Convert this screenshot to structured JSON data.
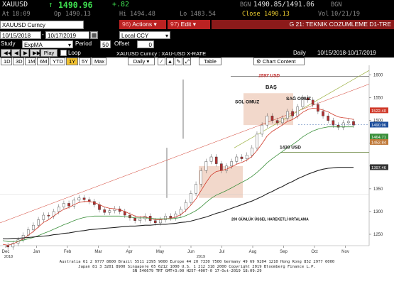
{
  "quote": {
    "ticker": "XAUUSD",
    "arrow": "↑",
    "last": "1490.96",
    "change": "+.82",
    "source1": "BGN",
    "bid_ask": "1490.85/1491.06",
    "source2": "BGN",
    "at_label": "At",
    "at_time": "18:09",
    "op_label": "Op",
    "op_value": "1490.13",
    "hi_label": "Hi",
    "hi_value": "1494.48",
    "lo_label": "Lo",
    "lo_value": "1483.54",
    "close_label": "Close",
    "close_value": "1490.13",
    "vol_label": "Vol",
    "vol_date": "10/21/19"
  },
  "toolbar": {
    "security": "XAUUSD  Curncy",
    "actions_num": "96)",
    "actions": "Actions",
    "edit_num": "97)",
    "edit": "Edit",
    "title": "G 21: TEKNIK COZUMLEME D1-TRE"
  },
  "daterow": {
    "from": "10/15/2018",
    "to": "10/17/2019",
    "ccy": "Local CCY"
  },
  "studyrow": {
    "study_label": "Study",
    "study_value": "ExpMA",
    "period_label": "Period",
    "period_value": "50",
    "offset_label": "Offset",
    "offset_value": "0"
  },
  "playrow": {
    "play": "Play",
    "loop": "Loop",
    "desc": "XAUUSD  Curncy : XAU-USD X-RATE",
    "freq": "Daily",
    "range": "10/15/2018-10/17/2019"
  },
  "tabs": {
    "periods": [
      "1D",
      "3D",
      "1M",
      "6M",
      "YTD",
      "1Y",
      "5Y",
      "Max"
    ],
    "selected": "1Y",
    "daily": "Daily",
    "table": "Table",
    "chart_content": "Chart Content"
  },
  "chart_data": {
    "type": "line",
    "x_labels": [
      "Dec",
      "Jan",
      "Feb",
      "Mar",
      "Apr",
      "May",
      "Jun",
      "Jul",
      "Aug",
      "Sep",
      "Oct",
      "Nov"
    ],
    "year_labels": [
      "2018",
      "2019"
    ],
    "y_ticks": [
      1250,
      1300,
      1350,
      1400,
      1450,
      1500,
      1550,
      1600
    ],
    "ylim": [
      1225,
      1615
    ],
    "right_tags": [
      "1522.40",
      "1490.96",
      "1464.71",
      "1452.84",
      "1397.46"
    ],
    "right_tag_colors": [
      "#d03a2a",
      "#1e4f9c",
      "#3a8f3a",
      "#c07a3a",
      "#333333"
    ],
    "annotations": {
      "target": "1597 USD",
      "head": "BAŞ",
      "left_shoulder": "SOL OMUZ",
      "right_shoulder": "SAĞ OMUZ",
      "neckline": "1430 USD",
      "ema_label": "200 GÜNLÜK ÜSSEL HAREKETLİ ORTALAMA"
    },
    "series": [
      {
        "name": "price",
        "color": "#333333",
        "values": [
          1225,
          1222,
          1230,
          1238,
          1248,
          1260,
          1270,
          1282,
          1292,
          1290,
          1300,
          1310,
          1318,
          1312,
          1325,
          1330,
          1326,
          1322,
          1315,
          1304,
          1298,
          1302,
          1306,
          1300,
          1292,
          1286,
          1280,
          1284,
          1290,
          1280,
          1275,
          1282,
          1290,
          1286,
          1295,
          1305,
          1320,
          1340,
          1360,
          1390,
          1410,
          1420,
          1405,
          1390,
          1400,
          1410,
          1420,
          1416,
          1424,
          1440,
          1470,
          1490,
          1510,
          1500,
          1495,
          1505,
          1520,
          1510,
          1530,
          1550,
          1545,
          1535,
          1520,
          1510,
          1500,
          1490,
          1485,
          1495,
          1498,
          1490
        ]
      },
      {
        "name": "ema20",
        "color": "#d03a2a",
        "values": [
          1228,
          1226,
          1229,
          1234,
          1240,
          1248,
          1256,
          1266,
          1276,
          1282,
          1290,
          1298,
          1305,
          1309,
          1315,
          1320,
          1322,
          1322,
          1320,
          1315,
          1310,
          1307,
          1306,
          1304,
          1300,
          1295,
          1290,
          1288,
          1288,
          1285,
          1282,
          1282,
          1284,
          1285,
          1288,
          1293,
          1302,
          1314,
          1328,
          1346,
          1364,
          1380,
          1388,
          1390,
          1393,
          1398,
          1404,
          1408,
          1413,
          1421,
          1434,
          1449,
          1466,
          1476,
          1483,
          1490,
          1498,
          1502,
          1509,
          1518,
          1524,
          1527,
          1526,
          1523,
          1519,
          1513,
          1508,
          1506,
          1505,
          1502
        ]
      },
      {
        "name": "ema50",
        "color": "#3a8f3a",
        "values": [
          1236,
          1234,
          1234,
          1235,
          1237,
          1240,
          1243,
          1247,
          1252,
          1256,
          1261,
          1266,
          1271,
          1275,
          1280,
          1284,
          1287,
          1289,
          1290,
          1290,
          1290,
          1290,
          1290,
          1290,
          1289,
          1288,
          1286,
          1286,
          1286,
          1285,
          1284,
          1284,
          1284,
          1284,
          1285,
          1287,
          1291,
          1296,
          1302,
          1310,
          1320,
          1329,
          1336,
          1341,
          1346,
          1352,
          1358,
          1364,
          1370,
          1377,
          1386,
          1396,
          1407,
          1416,
          1424,
          1432,
          1440,
          1447,
          1455,
          1464,
          1471,
          1477,
          1481,
          1484,
          1486,
          1486,
          1486,
          1486,
          1486,
          1486
        ]
      },
      {
        "name": "ema200",
        "color": "#222222",
        "values": [
          1240,
          1240,
          1241,
          1241,
          1242,
          1243,
          1244,
          1245,
          1246,
          1247,
          1249,
          1250,
          1252,
          1253,
          1255,
          1257,
          1258,
          1260,
          1261,
          1262,
          1263,
          1264,
          1265,
          1266,
          1267,
          1268,
          1268,
          1269,
          1270,
          1270,
          1271,
          1272,
          1272,
          1273,
          1274,
          1276,
          1277,
          1279,
          1282,
          1285,
          1288,
          1292,
          1296,
          1299,
          1303,
          1307,
          1311,
          1315,
          1319,
          1323,
          1328,
          1333,
          1339,
          1344,
          1350,
          1355,
          1361,
          1366,
          1372,
          1377,
          1382,
          1386,
          1390,
          1393,
          1395,
          1396,
          1397,
          1397,
          1397,
          1397
        ]
      }
    ]
  },
  "footer": {
    "line1": "Australia 61 2 9777 8600  Brazil 5511 2395 9000  Europe 44 20 7330 7500  Germany 49 69 9204 1210  Hong Kong 852 2977 6000",
    "line2": "Japan 81 3 3201 8900        Singapore 65 6212 1000        U.S. 1 212 318 2000        Copyright 2019 Bloomberg Finance L.P.",
    "line3": "SN 546679 TRT  GMT+3:00 H257-4007-0  17-Oct-2019 18:09:29"
  }
}
